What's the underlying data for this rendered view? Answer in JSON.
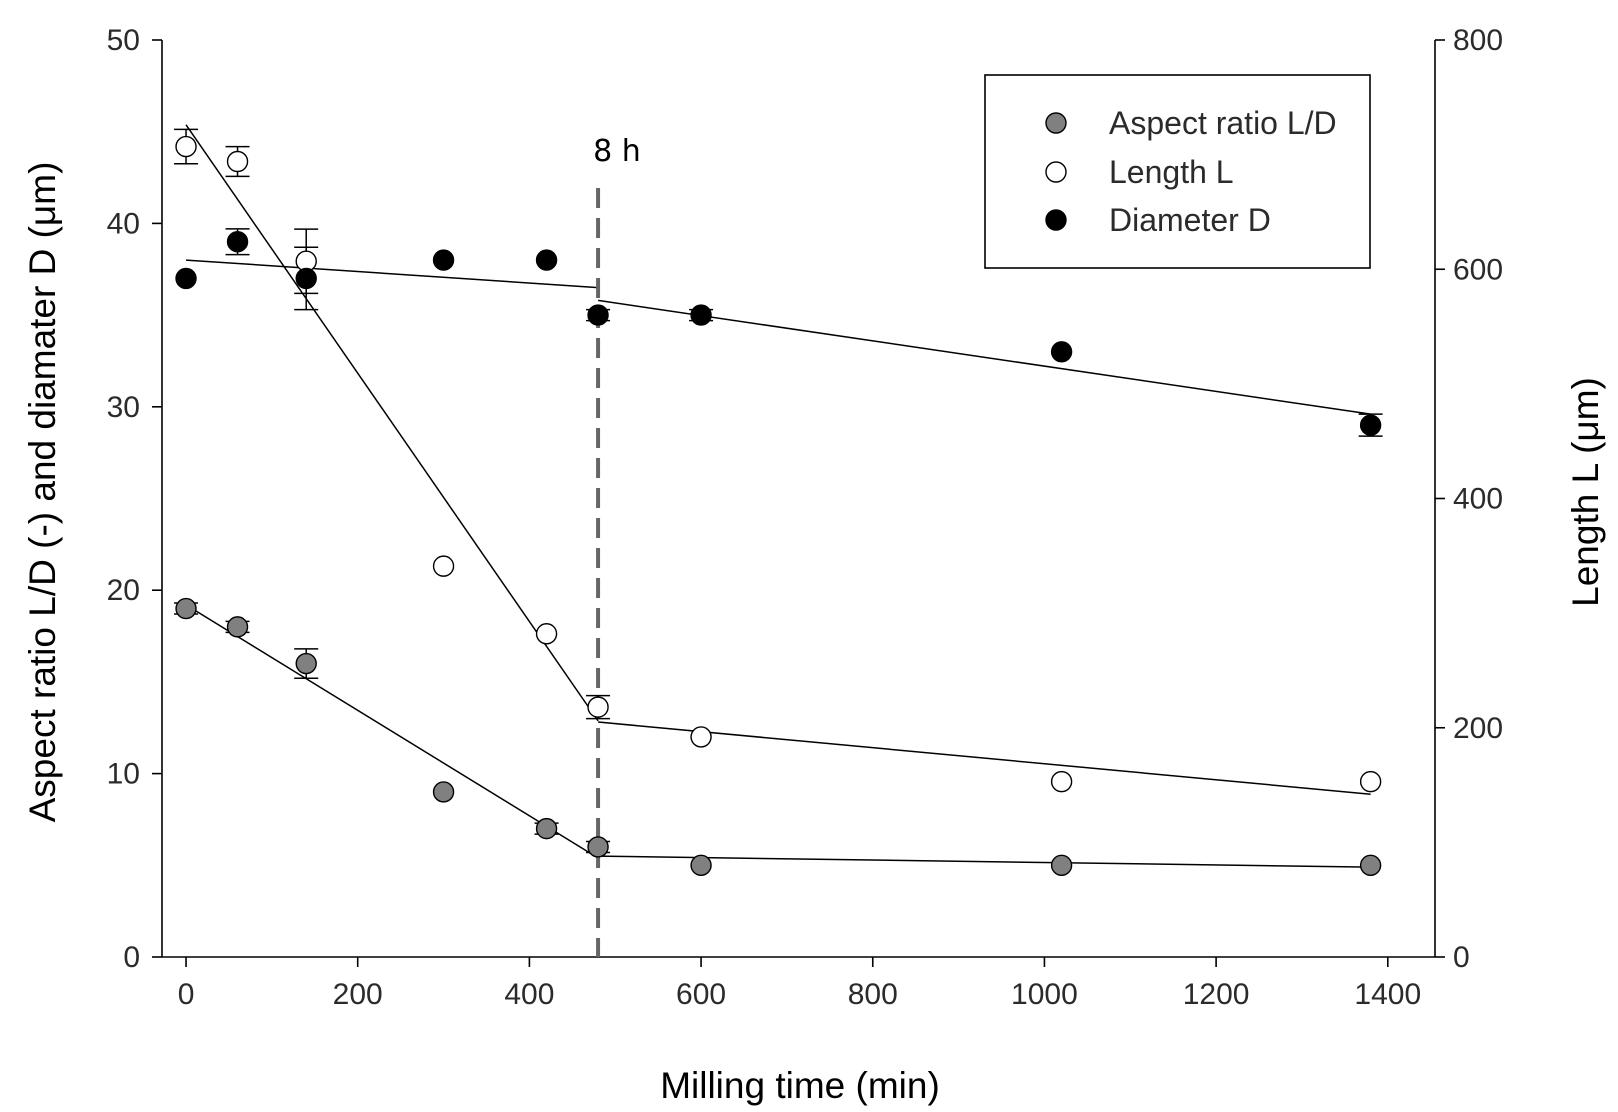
{
  "chart_data": {
    "type": "scatter",
    "title": "",
    "xlabel": "Milling time (min)",
    "ylabel_left": "Aspect ratio L/D (-) and diamater D (μm)",
    "ylabel_right": "Length L (μm)",
    "xlim": [
      -28,
      1455
    ],
    "ylim_left": [
      0,
      50
    ],
    "ylim_right": [
      0,
      800
    ],
    "x_ticks": [
      "0",
      "200",
      "400",
      "600",
      "800",
      "1000",
      "1200",
      "1400"
    ],
    "y_left_ticks": [
      "0",
      "10",
      "20",
      "30",
      "40",
      "50"
    ],
    "y_right_ticks": [
      "0",
      "200",
      "400",
      "600",
      "800"
    ],
    "grid": false,
    "legend_position": "top-right",
    "annotation": {
      "text": "8 h",
      "x": 480
    },
    "series": [
      {
        "name": "Aspect ratio L/D",
        "axis": "left",
        "marker": "circle",
        "fill": "#808080",
        "points": [
          {
            "x": 0,
            "y": 19,
            "xerr": 12,
            "yerr": 0.3
          },
          {
            "x": 60,
            "y": 18,
            "xerr": 10,
            "yerr": 0.3
          },
          {
            "x": 140,
            "y": 16,
            "xerr": 12,
            "yerr": 0.8
          },
          {
            "x": 300,
            "y": 9,
            "xerr": 0,
            "yerr": 0
          },
          {
            "x": 420,
            "y": 7,
            "xerr": 12,
            "yerr": 0.3
          },
          {
            "x": 480,
            "y": 6,
            "xerr": 12,
            "yerr": 0.3
          },
          {
            "x": 600,
            "y": 5,
            "xerr": 0,
            "yerr": 0
          },
          {
            "x": 1020,
            "y": 5,
            "xerr": 0,
            "yerr": 0
          },
          {
            "x": 1380,
            "y": 5,
            "xerr": 12,
            "yerr": 0
          }
        ],
        "fits": [
          {
            "x": [
              0,
              480
            ],
            "y": [
              19.2,
              5.4
            ]
          },
          {
            "x": [
              480,
              1380
            ],
            "y": [
              5.5,
              4.9
            ]
          }
        ]
      },
      {
        "name": "Length L",
        "axis": "right",
        "marker": "circle",
        "fill": "#ffffff",
        "points": [
          {
            "x": 0,
            "y": 707,
            "xerr": 0,
            "yerr": 15
          },
          {
            "x": 60,
            "y": 694,
            "xerr": 0,
            "yerr": 13
          },
          {
            "x": 140,
            "y": 607,
            "xerr": 0,
            "yerr": 28
          },
          {
            "x": 300,
            "y": 341,
            "xerr": 12,
            "yerr": 0
          },
          {
            "x": 420,
            "y": 282,
            "xerr": 12,
            "yerr": 0
          },
          {
            "x": 480,
            "y": 218,
            "xerr": 12,
            "yerr": 10
          },
          {
            "x": 600,
            "y": 192,
            "xerr": 12,
            "yerr": 0
          },
          {
            "x": 1020,
            "y": 153,
            "xerr": 12,
            "yerr": 0
          },
          {
            "x": 1380,
            "y": 153,
            "xerr": 12,
            "yerr": 0
          }
        ],
        "fits": [
          {
            "x": [
              0,
              480
            ],
            "y": [
              726,
              206
            ]
          },
          {
            "x": [
              480,
              1380
            ],
            "y": [
              205,
              142
            ]
          }
        ]
      },
      {
        "name": "Diameter D",
        "axis": "left",
        "marker": "circle",
        "fill": "#000000",
        "points": [
          {
            "x": 0,
            "y": 37,
            "xerr": 12,
            "yerr": 0
          },
          {
            "x": 60,
            "y": 39,
            "xerr": 0,
            "yerr": 0.7
          },
          {
            "x": 140,
            "y": 37,
            "xerr": 0,
            "yerr": 1.7
          },
          {
            "x": 300,
            "y": 38,
            "xerr": 0,
            "yerr": 0
          },
          {
            "x": 420,
            "y": 38,
            "xerr": 12,
            "yerr": 0
          },
          {
            "x": 480,
            "y": 35,
            "xerr": 12,
            "yerr": 0.3
          },
          {
            "x": 600,
            "y": 35,
            "xerr": 12,
            "yerr": 0.3
          },
          {
            "x": 1020,
            "y": 33,
            "xerr": 0,
            "yerr": 0
          },
          {
            "x": 1380,
            "y": 29,
            "xerr": 0,
            "yerr": 0.6
          }
        ],
        "fits": [
          {
            "x": [
              0,
              480
            ],
            "y": [
              38.0,
              36.5
            ]
          },
          {
            "x": [
              480,
              1380
            ],
            "y": [
              35.8,
              29.6
            ]
          }
        ]
      }
    ]
  }
}
